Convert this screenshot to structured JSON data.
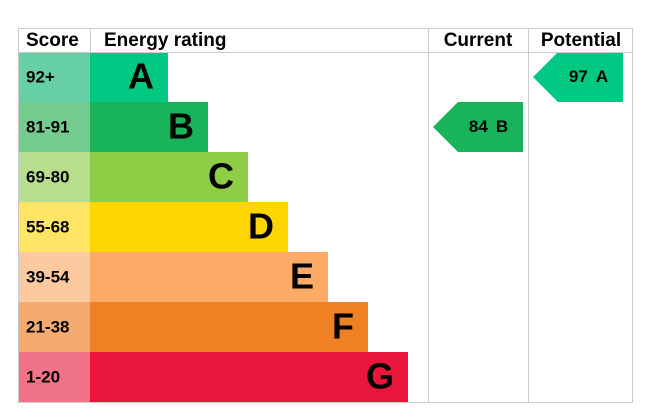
{
  "header": {
    "score": "Score",
    "rating": "Energy rating",
    "current": "Current",
    "potential": "Potential"
  },
  "bands": [
    {
      "range": "92+",
      "letter": "A",
      "color": "#00c781",
      "tint": "#66cfa5"
    },
    {
      "range": "81-91",
      "letter": "B",
      "color": "#19b459",
      "tint": "#73cb8f"
    },
    {
      "range": "69-80",
      "letter": "C",
      "color": "#8dce46",
      "tint": "#b8de8d"
    },
    {
      "range": "55-68",
      "letter": "D",
      "color": "#ffd500",
      "tint": "#ffe566"
    },
    {
      "range": "39-54",
      "letter": "E",
      "color": "#fcaa65",
      "tint": "#fdc99f"
    },
    {
      "range": "21-38",
      "letter": "F",
      "color": "#ef8023",
      "tint": "#f5ab6f"
    },
    {
      "range": "1-20",
      "letter": "G",
      "color": "#e9153b",
      "tint": "#f07389"
    }
  ],
  "current": {
    "score": 84,
    "letter": "B"
  },
  "potential": {
    "score": 97,
    "letter": "A"
  }
}
